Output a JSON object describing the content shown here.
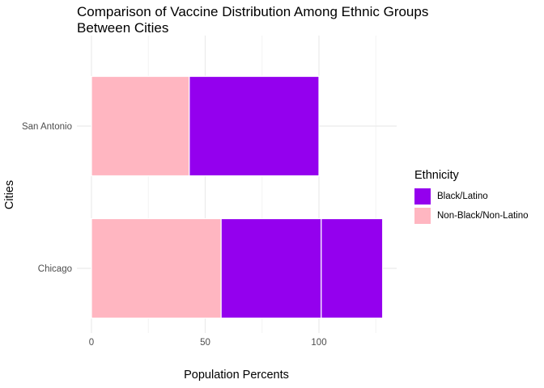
{
  "title_lines": [
    "Comparison of Vaccine Distribution Among Ethnic Groups",
    "Between Cities"
  ],
  "chart_data": {
    "type": "bar",
    "orientation": "horizontal",
    "stacked": true,
    "title": "Comparison of Vaccine Distribution Among Ethnic Groups Between Cities",
    "xlabel": "Population Percents",
    "ylabel": "Cities",
    "categories": [
      "San Antonio",
      "Chicago"
    ],
    "segments": {
      "San Antonio": [
        {
          "group": "Non-Black/Non-Latino",
          "value": 43
        },
        {
          "group": "Black/Latino",
          "value": 57
        }
      ],
      "Chicago": [
        {
          "group": "Non-Black/Non-Latino",
          "value": 57
        },
        {
          "group": "Black/Latino",
          "value": 44
        },
        {
          "group": "Black/Latino",
          "value": 27
        }
      ]
    },
    "xlim": [
      0,
      134
    ],
    "xticks": [
      0,
      50,
      100
    ],
    "grid": true,
    "legend": {
      "title": "Ethnicity",
      "position": "right",
      "entries": [
        {
          "label": "Black/Latino",
          "color": "#9400EE"
        },
        {
          "label": "Non-Black/Non-Latino",
          "color": "#FFB6C1"
        }
      ]
    }
  }
}
